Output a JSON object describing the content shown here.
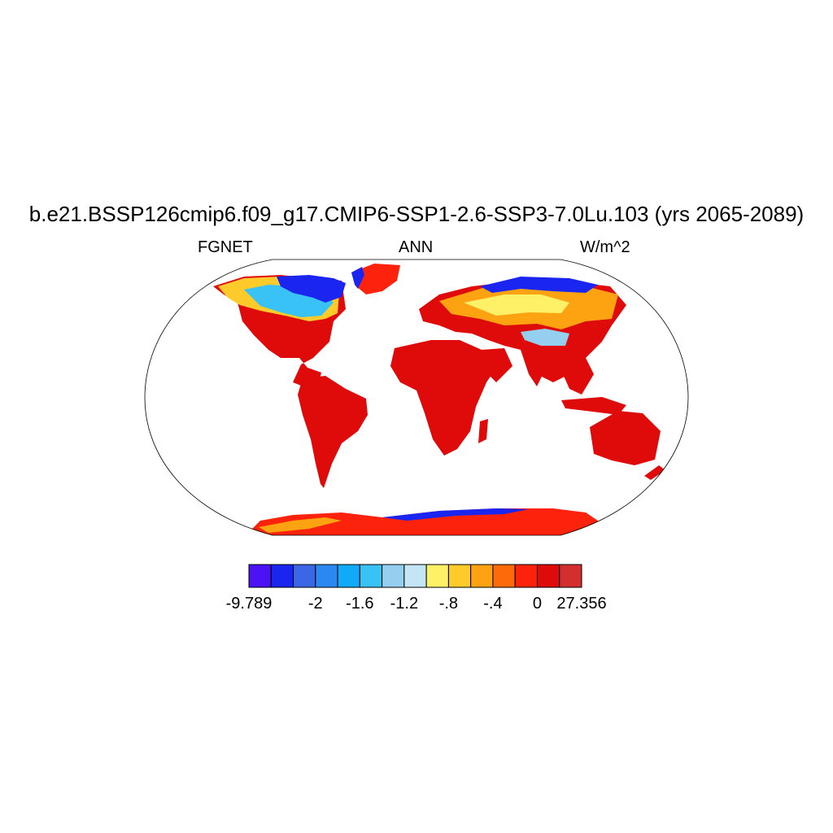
{
  "title": "b.e21.BSSP126cmip6.f09_g17.CMIP6-SSP1-2.6-SSP3-7.0Lu.103 (yrs 2065-2089)",
  "subtitle_left": "FGNET",
  "subtitle_center": "ANN",
  "subtitle_right": "W/m^2",
  "colorbar": {
    "colors": [
      "#4a12f4",
      "#1a26f0",
      "#3b66e6",
      "#2a88f0",
      "#10aaf8",
      "#38c2f5",
      "#95cff0",
      "#c4e5f6",
      "#fef067",
      "#fecb2a",
      "#fda311",
      "#fd6a0a",
      "#fc220c",
      "#df0a0a",
      "#d32f2f"
    ],
    "labels": [
      "-9.789",
      "-2",
      "-1.6",
      "-1.2",
      "-.8",
      "-.4",
      "0",
      "27.356"
    ]
  }
}
